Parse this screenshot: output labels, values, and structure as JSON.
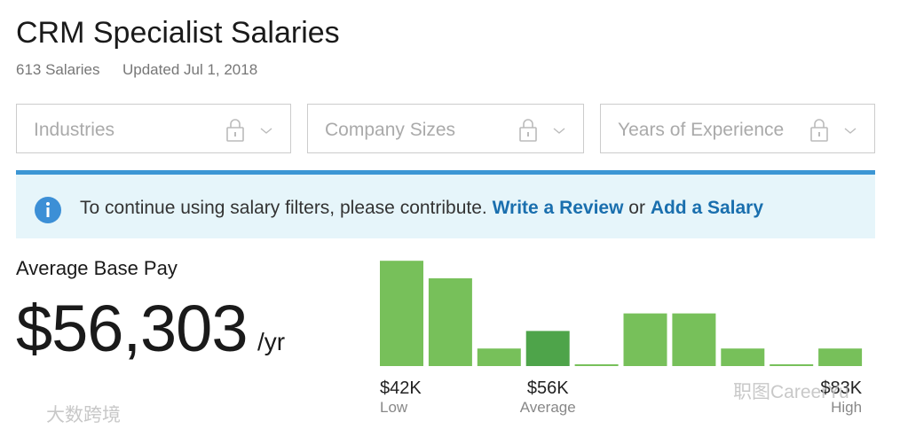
{
  "header": {
    "title": "CRM Specialist Salaries",
    "salary_count": "613 Salaries",
    "updated": "Updated Jul 1, 2018"
  },
  "filters": [
    "Industries",
    "Company Sizes",
    "Years of Experience"
  ],
  "notice": {
    "text": "To continue using salary filters, please contribute.",
    "link1": "Write a Review",
    "joiner": "or",
    "link2": "Add a Salary"
  },
  "pay": {
    "label": "Average Base Pay",
    "amount": "$56,303",
    "unit": "/yr"
  },
  "chart_data": {
    "type": "bar",
    "values": [
      6,
      5,
      1,
      2,
      0,
      3,
      3,
      1,
      0,
      1
    ],
    "colors": [
      "#77c05a",
      "#77c05a",
      "#77c05a",
      "#4ea44a",
      "#77c05a",
      "#77c05a",
      "#77c05a",
      "#77c05a",
      "#77c05a",
      "#77c05a"
    ],
    "categories": [
      "$42K",
      null,
      null,
      "$56K",
      null,
      null,
      null,
      null,
      null,
      "$83K"
    ],
    "category_notes": [
      "Low",
      null,
      null,
      "Average",
      null,
      null,
      null,
      null,
      null,
      "High"
    ]
  },
  "watermarks": [
    "大数跨境",
    "职图CareerYu"
  ]
}
